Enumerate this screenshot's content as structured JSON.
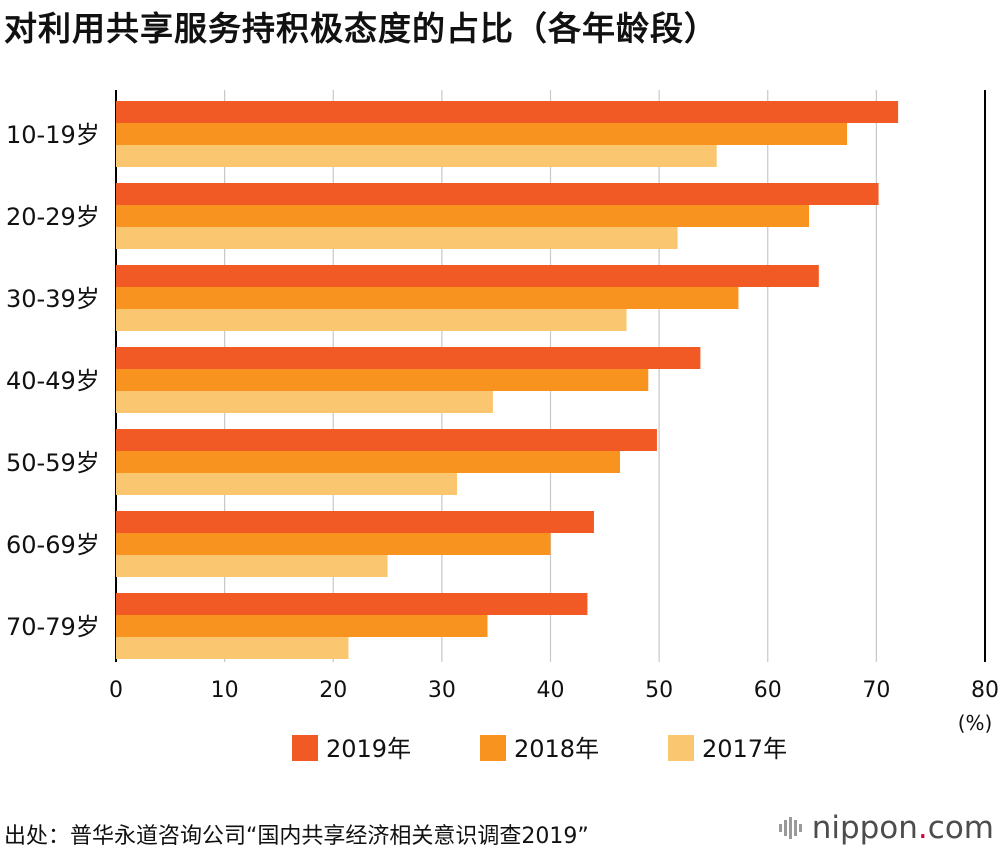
{
  "title": "对利用共享服务持积极态度的占比（各年龄段）",
  "source": "出处：普华永道咨询公司“国内共享经济相关意识调查2019”",
  "brand": {
    "name": "nippon",
    "dot": ".",
    "tld": "com",
    "icon": "waveform-icon"
  },
  "colors": {
    "2019": "#f15a24",
    "2018": "#f7931e",
    "2017": "#fbc670",
    "grid": "#c8c8c8",
    "axis": "#000000"
  },
  "chart_data": {
    "type": "bar",
    "orientation": "horizontal",
    "title": "对利用共享服务持积极态度的占比（各年龄段）",
    "categories": [
      "10-19岁",
      "20-29岁",
      "30-39岁",
      "40-49岁",
      "50-59岁",
      "60-69岁",
      "70-79岁"
    ],
    "series": [
      {
        "name": "2019年",
        "key": "2019",
        "values": [
          72.0,
          70.2,
          64.7,
          53.8,
          49.8,
          44.0,
          43.4
        ]
      },
      {
        "name": "2018年",
        "key": "2018",
        "values": [
          67.3,
          63.8,
          57.3,
          49.0,
          46.4,
          40.0,
          34.2
        ]
      },
      {
        "name": "2017年",
        "key": "2017",
        "values": [
          55.3,
          51.7,
          47.0,
          34.7,
          31.4,
          25.0,
          21.4
        ]
      }
    ],
    "xlim": [
      0,
      80
    ],
    "xticks": [
      "0",
      "10",
      "20",
      "30",
      "40",
      "50",
      "60",
      "70",
      "80"
    ],
    "xunit": "(%)",
    "grid": true,
    "legend_position": "bottom"
  }
}
